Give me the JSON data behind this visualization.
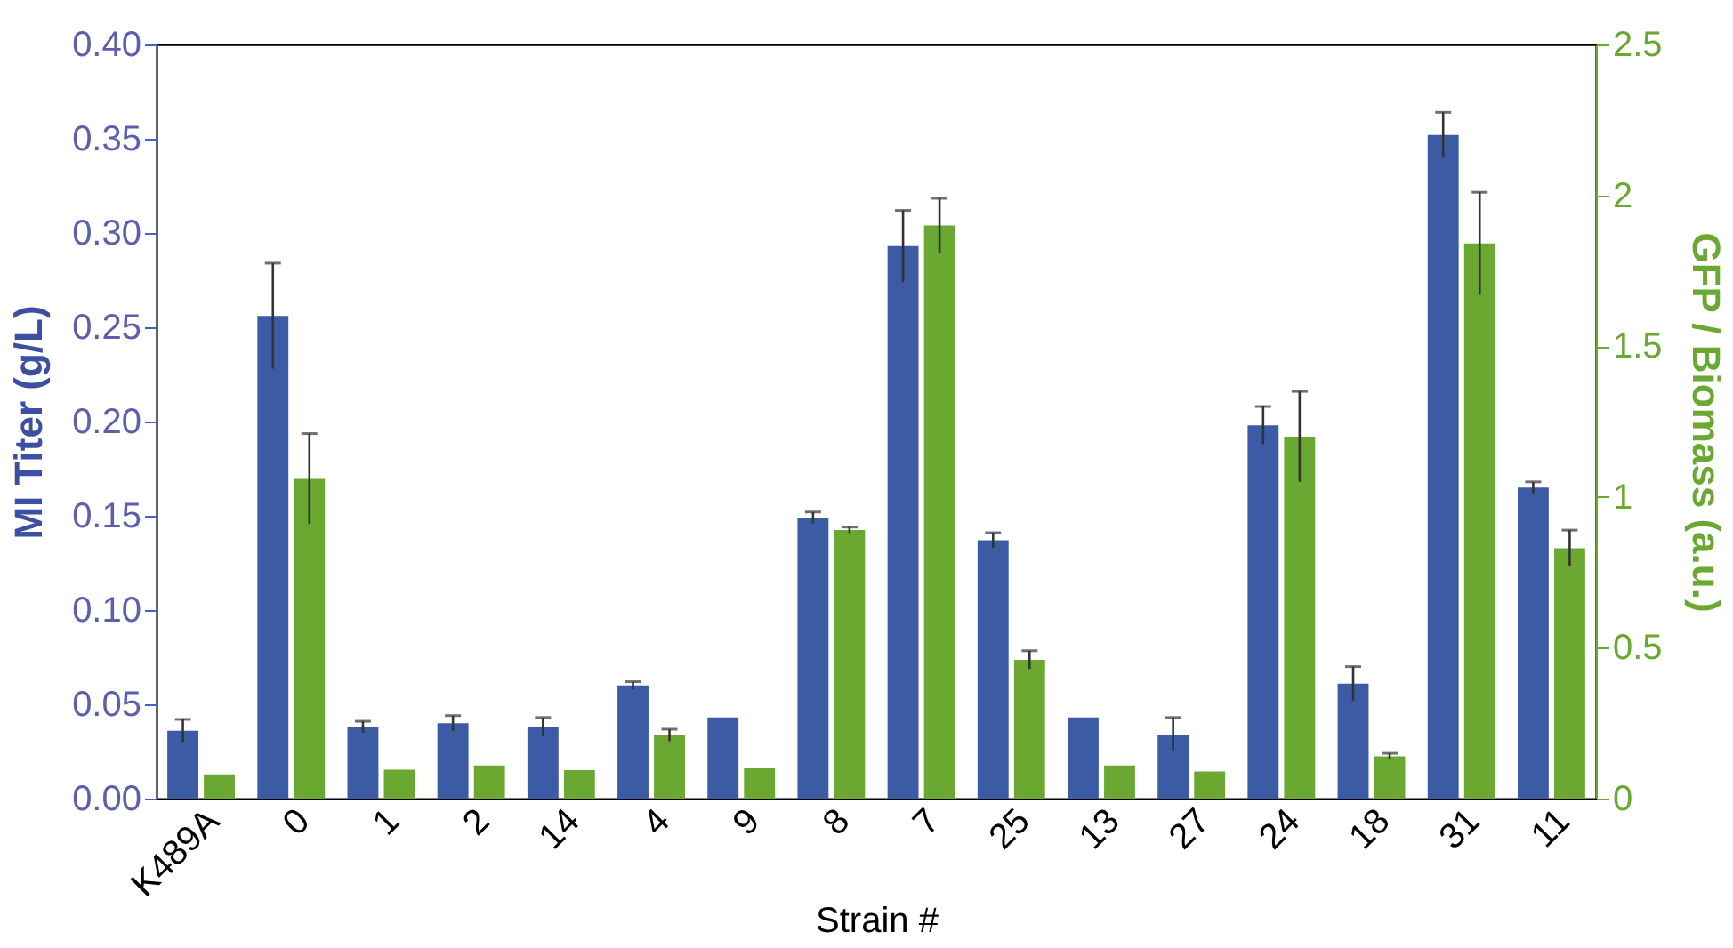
{
  "chart_data": {
    "type": "bar",
    "xlabel": "Strain #",
    "ylabel": "MI Titer (g/L)",
    "y2label": "GFP / Biomass (a.u.)",
    "categories": [
      "K489A",
      "0",
      "1",
      "2",
      "14",
      "4",
      "9",
      "8",
      "7",
      "25",
      "13",
      "27",
      "24",
      "18",
      "31",
      "11"
    ],
    "series": [
      {
        "color": "#3b5ba5",
        "axis": "y",
        "values": [
          0.036,
          0.256,
          0.038,
          0.04,
          0.038,
          0.06,
          0.043,
          0.149,
          0.293,
          0.137,
          0.043,
          0.034,
          0.198,
          0.061,
          0.352,
          0.165
        ],
        "errors": [
          0.006,
          0.028,
          0.003,
          0.004,
          0.005,
          0.002,
          null,
          0.003,
          0.019,
          0.004,
          null,
          0.009,
          0.01,
          0.009,
          0.012,
          0.003
        ]
      },
      {
        "color": "#6aa832",
        "axis": "y2",
        "values": [
          0.08,
          1.06,
          0.096,
          0.11,
          0.094,
          0.21,
          0.1,
          0.89,
          1.9,
          0.46,
          0.11,
          0.09,
          1.2,
          0.14,
          1.84,
          0.83
        ],
        "errors": [
          null,
          0.15,
          null,
          null,
          null,
          0.02,
          null,
          0.01,
          0.09,
          0.03,
          null,
          null,
          0.15,
          0.01,
          0.17,
          0.06
        ]
      }
    ],
    "ylim": [
      0,
      0.4
    ],
    "yticks": [
      {
        "value": 0,
        "label": "0.00"
      },
      {
        "value": 0.05,
        "label": "0.05"
      },
      {
        "value": 0.1,
        "label": "0.10"
      },
      {
        "value": 0.15,
        "label": "0.15"
      },
      {
        "value": 0.2,
        "label": "0.20"
      },
      {
        "value": 0.25,
        "label": "0.25"
      },
      {
        "value": 0.3,
        "label": "0.30"
      },
      {
        "value": 0.35,
        "label": "0.35"
      },
      {
        "value": 0.4,
        "label": "0.40"
      }
    ],
    "y2lim": [
      0,
      2.5
    ],
    "y2ticks": [
      0,
      0.5,
      1,
      1.5,
      2,
      2.5
    ],
    "grid": false
  }
}
